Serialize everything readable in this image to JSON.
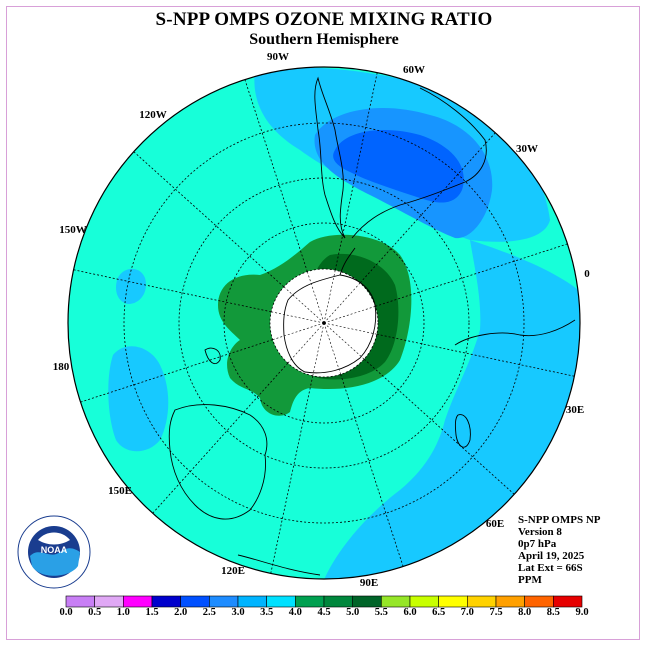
{
  "title": "S-NPP OMPS OZONE MIXING RATIO",
  "subtitle": "Southern Hemisphere",
  "info": {
    "line1": "S-NPP OMPS NP",
    "line2": "Version 8",
    "line3": "0p7 hPa",
    "line4": "April 19, 2025",
    "line5": "Lat Ext = 66S",
    "line6": "PPM"
  },
  "longitude_labels": [
    "90W",
    "60W",
    "30W",
    "0",
    "30E",
    "60E",
    "90E",
    "120E",
    "150E",
    "180",
    "150W",
    "120W"
  ],
  "logo_text": "NOAA",
  "colors": {
    "background_field": "#17ffd9",
    "light_blue": "#17c9ff",
    "mid_blue": "#1795ff",
    "blue": "#0064ff",
    "green": "#12993a",
    "dark_green": "#006a1d",
    "pole_fill": "#ffffff"
  },
  "colorbar": {
    "labels": [
      "0.0",
      "0.5",
      "1.0",
      "1.5",
      "2.0",
      "2.5",
      "3.0",
      "3.5",
      "4.0",
      "4.5",
      "5.0",
      "5.5",
      "6.0",
      "6.5",
      "7.0",
      "7.5",
      "8.0",
      "8.5",
      "9.0"
    ],
    "colors": [
      "#c87ff5",
      "#e0a8f5",
      "#ff00ff",
      "#0000cc",
      "#0050ff",
      "#1e8cff",
      "#00b4ff",
      "#00e1ff",
      "#00a050",
      "#00873c",
      "#006428",
      "#96e628",
      "#c8ff00",
      "#ffff00",
      "#ffd200",
      "#ffa000",
      "#ff6400",
      "#e60000",
      "#8b5a3c"
    ]
  }
}
